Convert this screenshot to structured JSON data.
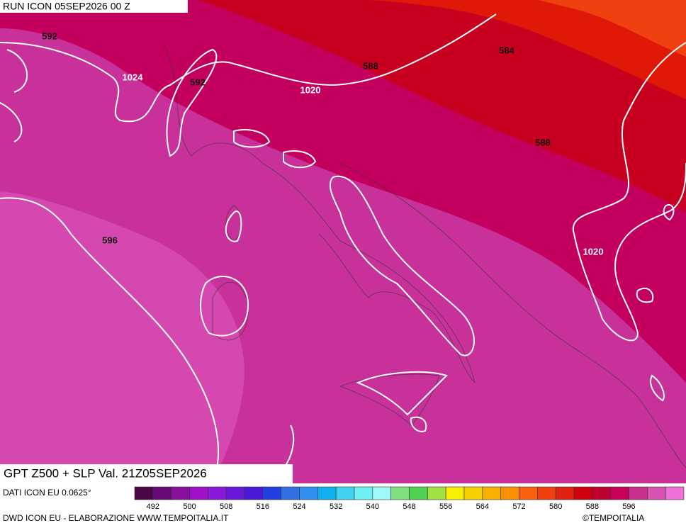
{
  "header": {
    "run": "RUN ICON 05SEP2026 00 Z"
  },
  "map": {
    "contour_labels": [
      {
        "text": "592",
        "kind": "z500"
      },
      {
        "text": "1024",
        "kind": "slp"
      },
      {
        "text": "592",
        "kind": "z500"
      },
      {
        "text": "588",
        "kind": "z500"
      },
      {
        "text": "1020",
        "kind": "slp"
      },
      {
        "text": "584",
        "kind": "z500"
      },
      {
        "text": "588",
        "kind": "z500"
      },
      {
        "text": "596",
        "kind": "z500"
      },
      {
        "text": "1020",
        "kind": "slp"
      }
    ]
  },
  "footer": {
    "title": "GPT Z500 + SLP Val. 21Z05SEP2026",
    "data_source": "DATI ICON EU 0.0625°",
    "credits": "DWD ICON EU - ELABORAZIONE WWW.TEMPOITALIA.IT",
    "copyright": "©TEMPOITALIA"
  },
  "legend": {
    "labels": [
      "492",
      "500",
      "508",
      "516",
      "524",
      "532",
      "540",
      "548",
      "556",
      "564",
      "572",
      "580",
      "588",
      "596"
    ],
    "colors": [
      "#4a0848",
      "#6a0a78",
      "#8a10a0",
      "#a010c8",
      "#8a18d8",
      "#6a18d8",
      "#4a18d8",
      "#2040e0",
      "#3070e0",
      "#3090ee",
      "#10b0f0",
      "#40d0f0",
      "#70f0f0",
      "#a0f8f8",
      "#80e080",
      "#50d050",
      "#a0e040",
      "#f8f000",
      "#f8d000",
      "#f8b000",
      "#f89000",
      "#f86010",
      "#f04010",
      "#e02010",
      "#d00010",
      "#c00030",
      "#c8005a",
      "#c83090",
      "#d850b0",
      "#f070d8"
    ]
  }
}
